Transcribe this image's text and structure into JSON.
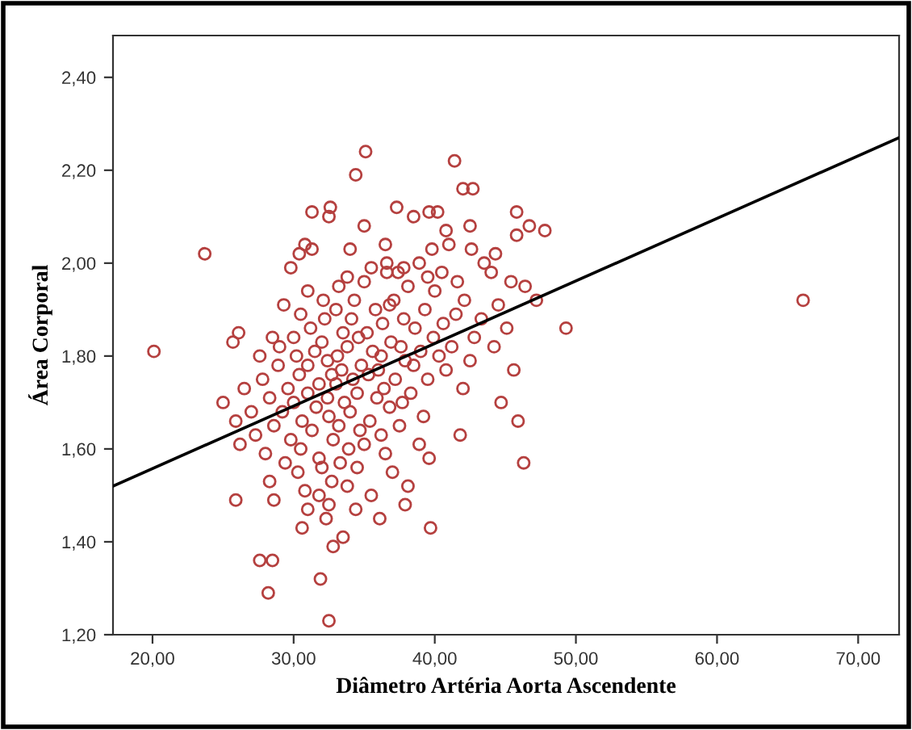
{
  "chart_data": {
    "type": "scatter",
    "xlabel": "Diâmetro Artéria Aorta Ascendente",
    "ylabel": "Área Corporal",
    "xlim": [
      17.2,
      72.9
    ],
    "ylim": [
      1.2,
      2.49
    ],
    "xticks": [
      {
        "value": 20,
        "label": "20,00"
      },
      {
        "value": 30,
        "label": "30,00"
      },
      {
        "value": 40,
        "label": "40,00"
      },
      {
        "value": 50,
        "label": "50,00"
      },
      {
        "value": 60,
        "label": "60,00"
      },
      {
        "value": 70,
        "label": "70,00"
      }
    ],
    "yticks": [
      {
        "value": 1.2,
        "label": "1,20"
      },
      {
        "value": 1.4,
        "label": "1,40"
      },
      {
        "value": 1.6,
        "label": "1,60"
      },
      {
        "value": 1.8,
        "label": "1,80"
      },
      {
        "value": 2.0,
        "label": "2,00"
      },
      {
        "value": 2.2,
        "label": "2,20"
      },
      {
        "value": 2.4,
        "label": "2,40"
      }
    ],
    "grid": false,
    "series": [
      {
        "color": "#b5403f",
        "marker": "circle",
        "x": [
          35.1,
          41.4,
          34.4,
          42.0,
          42.7,
          37.3,
          32.6,
          31.3,
          39.6,
          40.2,
          45.8,
          32.5,
          38.5,
          46.7,
          42.5,
          35.0,
          47.8,
          40.8,
          45.8,
          30.8,
          36.5,
          41.0,
          31.3,
          34.0,
          39.8,
          42.6,
          23.7,
          30.4,
          44.3,
          36.6,
          38.9,
          43.5,
          29.8,
          35.5,
          37.8,
          36.6,
          37.4,
          40.5,
          44.0,
          33.8,
          39.5,
          35.0,
          41.6,
          45.4,
          46.4,
          33.2,
          38.1,
          31.0,
          40.0,
          66.1,
          47.2,
          32.1,
          34.3,
          37.1,
          42.1,
          29.3,
          36.8,
          44.5,
          33.0,
          35.8,
          39.3,
          30.5,
          41.5,
          32.2,
          34.1,
          37.8,
          43.3,
          36.3,
          40.6,
          49.3,
          31.2,
          38.6,
          45.1,
          26.1,
          33.5,
          35.2,
          28.5,
          30.0,
          34.6,
          39.9,
          42.8,
          25.7,
          32.0,
          36.9,
          29.0,
          33.8,
          37.6,
          41.2,
          44.2,
          20.1,
          31.5,
          35.6,
          39.0,
          27.6,
          30.2,
          33.1,
          36.2,
          40.3,
          32.4,
          37.9,
          42.5,
          28.9,
          31.0,
          34.8,
          38.5,
          33.4,
          36.0,
          40.8,
          45.6,
          30.4,
          32.7,
          35.3,
          27.8,
          34.2,
          37.2,
          39.5,
          31.8,
          33.0,
          26.5,
          29.6,
          36.4,
          42.0,
          31.0,
          34.5,
          38.3,
          28.3,
          32.4,
          35.9,
          25.0,
          30.0,
          33.6,
          37.7,
          44.7,
          31.6,
          36.8,
          27.0,
          29.2,
          34.0,
          32.5,
          39.2,
          25.9,
          30.6,
          35.4,
          45.9,
          28.6,
          33.2,
          37.5,
          31.3,
          34.7,
          27.3,
          36.2,
          41.8,
          29.8,
          32.8,
          26.2,
          35.0,
          38.9,
          30.5,
          33.9,
          28.0,
          36.5,
          31.8,
          39.6,
          46.3,
          29.4,
          33.3,
          32.0,
          34.5,
          30.3,
          37.0,
          28.3,
          32.7,
          33.8,
          38.1,
          30.8,
          31.8,
          35.5,
          25.9,
          28.6,
          32.5,
          37.9,
          31.0,
          34.4,
          32.3,
          36.1,
          30.6,
          39.7,
          33.5,
          32.8,
          27.6,
          28.5,
          31.9,
          28.2,
          32.5
        ],
        "values": [
          2.24,
          2.22,
          2.19,
          2.16,
          2.16,
          2.12,
          2.12,
          2.11,
          2.11,
          2.11,
          2.11,
          2.1,
          2.1,
          2.08,
          2.08,
          2.08,
          2.07,
          2.07,
          2.06,
          2.04,
          2.04,
          2.04,
          2.03,
          2.03,
          2.03,
          2.03,
          2.02,
          2.02,
          2.02,
          2.0,
          2.0,
          2.0,
          1.99,
          1.99,
          1.99,
          1.98,
          1.98,
          1.98,
          1.98,
          1.97,
          1.97,
          1.96,
          1.96,
          1.96,
          1.95,
          1.95,
          1.95,
          1.94,
          1.94,
          1.92,
          1.92,
          1.92,
          1.92,
          1.92,
          1.92,
          1.91,
          1.91,
          1.91,
          1.9,
          1.9,
          1.9,
          1.89,
          1.89,
          1.88,
          1.88,
          1.88,
          1.88,
          1.87,
          1.87,
          1.86,
          1.86,
          1.86,
          1.86,
          1.85,
          1.85,
          1.85,
          1.84,
          1.84,
          1.84,
          1.84,
          1.84,
          1.83,
          1.83,
          1.83,
          1.82,
          1.82,
          1.82,
          1.82,
          1.82,
          1.81,
          1.81,
          1.81,
          1.81,
          1.8,
          1.8,
          1.8,
          1.8,
          1.8,
          1.79,
          1.79,
          1.79,
          1.78,
          1.78,
          1.78,
          1.78,
          1.77,
          1.77,
          1.77,
          1.77,
          1.76,
          1.76,
          1.76,
          1.75,
          1.75,
          1.75,
          1.75,
          1.74,
          1.74,
          1.73,
          1.73,
          1.73,
          1.73,
          1.72,
          1.72,
          1.72,
          1.71,
          1.71,
          1.71,
          1.7,
          1.7,
          1.7,
          1.7,
          1.7,
          1.69,
          1.69,
          1.68,
          1.68,
          1.68,
          1.67,
          1.67,
          1.66,
          1.66,
          1.66,
          1.66,
          1.65,
          1.65,
          1.65,
          1.64,
          1.64,
          1.63,
          1.63,
          1.63,
          1.62,
          1.62,
          1.61,
          1.61,
          1.61,
          1.6,
          1.6,
          1.59,
          1.59,
          1.58,
          1.58,
          1.57,
          1.57,
          1.57,
          1.56,
          1.56,
          1.55,
          1.55,
          1.53,
          1.53,
          1.52,
          1.52,
          1.51,
          1.5,
          1.5,
          1.49,
          1.49,
          1.48,
          1.48,
          1.47,
          1.47,
          1.45,
          1.45,
          1.43,
          1.43,
          1.41,
          1.39,
          1.36,
          1.36,
          1.32,
          1.29,
          1.23
        ]
      },
      {
        "type": "line",
        "color": "#000000",
        "marker": "none",
        "line_style": "solid",
        "x": [
          17.2,
          72.9
        ],
        "values": [
          1.52,
          2.27
        ]
      }
    ]
  }
}
